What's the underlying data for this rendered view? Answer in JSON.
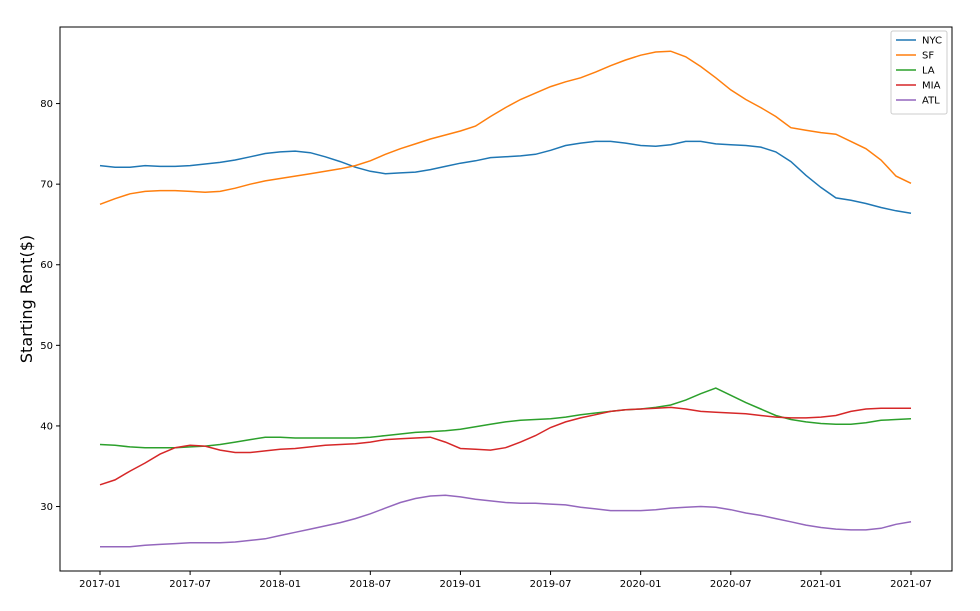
{
  "chart_data": {
    "type": "line",
    "title": "",
    "xlabel": "",
    "ylabel": "Starting Rent($)",
    "x": [
      "2017-01",
      "2017-02",
      "2017-03",
      "2017-04",
      "2017-05",
      "2017-06",
      "2017-07",
      "2017-08",
      "2017-09",
      "2017-10",
      "2017-11",
      "2017-12",
      "2018-01",
      "2018-02",
      "2018-03",
      "2018-04",
      "2018-05",
      "2018-06",
      "2018-07",
      "2018-08",
      "2018-09",
      "2018-10",
      "2018-11",
      "2018-12",
      "2019-01",
      "2019-02",
      "2019-03",
      "2019-04",
      "2019-05",
      "2019-06",
      "2019-07",
      "2019-08",
      "2019-09",
      "2019-10",
      "2019-11",
      "2019-12",
      "2020-01",
      "2020-02",
      "2020-03",
      "2020-04",
      "2020-05",
      "2020-06",
      "2020-07",
      "2020-08",
      "2020-09",
      "2020-10",
      "2020-11",
      "2020-12",
      "2021-01",
      "2021-02",
      "2021-03",
      "2021-04",
      "2021-05",
      "2021-06",
      "2021-07"
    ],
    "xticks": [
      "2017-01",
      "2017-07",
      "2018-01",
      "2018-07",
      "2019-01",
      "2019-07",
      "2020-01",
      "2020-07",
      "2021-01",
      "2021-07"
    ],
    "yticks": [
      30,
      40,
      50,
      60,
      70,
      80
    ],
    "ylim": [
      22,
      89.5
    ],
    "grid": false,
    "legend_position": "top-right",
    "series": [
      {
        "name": "NYC",
        "color": "#1f77b4",
        "values": [
          72.3,
          72.1,
          72.1,
          72.3,
          72.2,
          72.2,
          72.3,
          72.5,
          72.7,
          73.0,
          73.4,
          73.8,
          74.0,
          74.1,
          73.9,
          73.4,
          72.8,
          72.1,
          71.6,
          71.3,
          71.4,
          71.5,
          71.8,
          72.2,
          72.6,
          72.9,
          73.3,
          73.4,
          73.5,
          73.7,
          74.2,
          74.8,
          75.1,
          75.3,
          75.3,
          75.1,
          74.8,
          74.7,
          74.9,
          75.3,
          75.3,
          75.0,
          74.9,
          74.8,
          74.6,
          74.0,
          72.8,
          71.1,
          69.6,
          68.3,
          68.0,
          67.6,
          67.1,
          66.7,
          66.4
        ]
      },
      {
        "name": "SF",
        "color": "#ff7f0e",
        "values": [
          67.5,
          68.2,
          68.8,
          69.1,
          69.2,
          69.2,
          69.1,
          69.0,
          69.1,
          69.5,
          70.0,
          70.4,
          70.7,
          71.0,
          71.3,
          71.6,
          71.9,
          72.3,
          72.9,
          73.7,
          74.4,
          75.0,
          75.6,
          76.1,
          76.6,
          77.2,
          78.4,
          79.5,
          80.5,
          81.3,
          82.1,
          82.7,
          83.2,
          83.9,
          84.7,
          85.4,
          86.0,
          86.4,
          86.5,
          85.8,
          84.6,
          83.2,
          81.7,
          80.5,
          79.5,
          78.4,
          77.0,
          76.7,
          76.4,
          76.2,
          75.3,
          74.4,
          73.0,
          71.0,
          70.1
        ]
      },
      {
        "name": "LA",
        "color": "#2ca02c",
        "values": [
          37.7,
          37.6,
          37.4,
          37.3,
          37.3,
          37.3,
          37.4,
          37.5,
          37.7,
          38.0,
          38.3,
          38.6,
          38.6,
          38.5,
          38.5,
          38.5,
          38.5,
          38.5,
          38.6,
          38.8,
          39.0,
          39.2,
          39.3,
          39.4,
          39.6,
          39.9,
          40.2,
          40.5,
          40.7,
          40.8,
          40.9,
          41.1,
          41.4,
          41.6,
          41.8,
          42.0,
          42.1,
          42.3,
          42.6,
          43.2,
          44.0,
          44.7,
          43.8,
          42.9,
          42.1,
          41.3,
          40.8,
          40.5,
          40.3,
          40.2,
          40.2,
          40.4,
          40.7,
          40.8,
          40.9
        ]
      },
      {
        "name": "MIA",
        "color": "#d62728",
        "values": [
          32.7,
          33.3,
          34.4,
          35.4,
          36.5,
          37.3,
          37.6,
          37.5,
          37.0,
          36.7,
          36.7,
          36.9,
          37.1,
          37.2,
          37.4,
          37.6,
          37.7,
          37.8,
          38.0,
          38.3,
          38.4,
          38.5,
          38.6,
          38.0,
          37.2,
          37.1,
          37.0,
          37.3,
          38.0,
          38.8,
          39.8,
          40.5,
          41.0,
          41.4,
          41.8,
          42.0,
          42.1,
          42.2,
          42.3,
          42.1,
          41.8,
          41.7,
          41.6,
          41.5,
          41.3,
          41.1,
          41.0,
          41.0,
          41.1,
          41.3,
          41.8,
          42.1,
          42.2,
          42.2,
          42.2
        ]
      },
      {
        "name": "ATL",
        "color": "#9467bd",
        "values": [
          25.0,
          25.0,
          25.0,
          25.2,
          25.3,
          25.4,
          25.5,
          25.5,
          25.5,
          25.6,
          25.8,
          26.0,
          26.4,
          26.8,
          27.2,
          27.6,
          28.0,
          28.5,
          29.1,
          29.8,
          30.5,
          31.0,
          31.3,
          31.4,
          31.2,
          30.9,
          30.7,
          30.5,
          30.4,
          30.4,
          30.3,
          30.2,
          29.9,
          29.7,
          29.5,
          29.5,
          29.5,
          29.6,
          29.8,
          29.9,
          30.0,
          29.9,
          29.6,
          29.2,
          28.9,
          28.5,
          28.1,
          27.7,
          27.4,
          27.2,
          27.1,
          27.1,
          27.3,
          27.8,
          28.1
        ]
      }
    ]
  }
}
